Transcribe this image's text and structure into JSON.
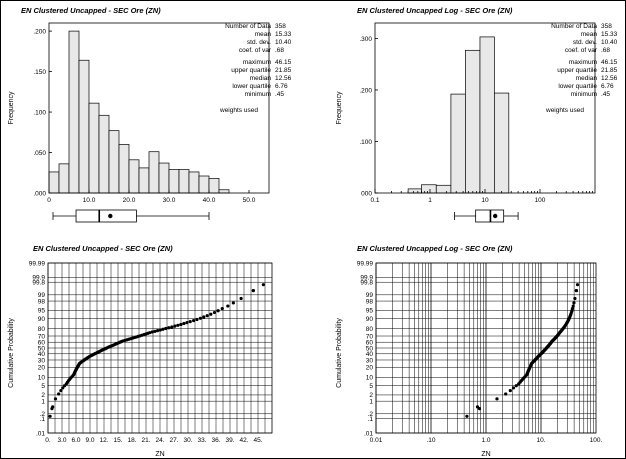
{
  "chart_data": [
    {
      "type": "histogram",
      "title": "EN Clustered Uncapped - SEC Ore (ZN)",
      "ylabel": "Frequency",
      "xlim": [
        0,
        55
      ],
      "ylim": [
        0,
        0.21
      ],
      "x_ticks": [
        "0",
        "10.0",
        "20.0",
        "30.0",
        "40.0",
        "50.0"
      ],
      "y_ticks": [
        ".000",
        ".050",
        ".100",
        ".150",
        ".200"
      ],
      "bin_width": 2.5,
      "bin_starts": [
        0,
        2.5,
        5,
        7.5,
        10,
        12.5,
        15,
        17.5,
        20,
        22.5,
        25,
        27.5,
        30,
        32.5,
        35,
        37.5,
        40,
        42.5
      ],
      "values": [
        0.026,
        0.036,
        0.2,
        0.164,
        0.111,
        0.096,
        0.077,
        0.06,
        0.041,
        0.031,
        0.051,
        0.037,
        0.029,
        0.029,
        0.026,
        0.021,
        0.018,
        0.004
      ],
      "stats": [
        {
          "label": "Number of Data",
          "value": "358"
        },
        {
          "label": "mean",
          "value": "15.33"
        },
        {
          "label": "std. dev.",
          "value": "10.40"
        },
        {
          "label": "coef. of var",
          "value": ".68"
        },
        {
          "label": "maximum",
          "value": "46.15"
        },
        {
          "label": "upper quartile",
          "value": "21.85"
        },
        {
          "label": "median",
          "value": "12.56"
        },
        {
          "label": "lower quartile",
          "value": "6.76"
        },
        {
          "label": "minimum",
          "value": ".45"
        }
      ],
      "weights_note": "weights used",
      "boxplot": {
        "min": 1,
        "q1": 6.76,
        "median": 12.56,
        "q3": 21.85,
        "max": 40,
        "mean": 15.33
      }
    },
    {
      "type": "histogram",
      "title": "EN Clustered Uncapped Log - SEC Ore (ZN)",
      "ylabel": "Frequency",
      "xscale": "log",
      "xlim": [
        0.1,
        1000
      ],
      "ylim": [
        0,
        0.33
      ],
      "x_ticks": [
        "0.1",
        "1",
        "10",
        "100"
      ],
      "y_ticks": [
        "000",
        ".100",
        ".200",
        ".300"
      ],
      "bin_edges": [
        0.4,
        0.7,
        1.3,
        2.4,
        4.4,
        8.1,
        14.8,
        27.1,
        49.6
      ],
      "values": [
        0.008,
        0.016,
        0.015,
        0.192,
        0.277,
        0.303,
        0.194,
        0
      ],
      "stats": [
        {
          "label": "Number of Data",
          "value": "358"
        },
        {
          "label": "mean",
          "value": "15.33"
        },
        {
          "label": "std. dev.",
          "value": "10.40"
        },
        {
          "label": "coef. of var",
          "value": ".68"
        },
        {
          "label": "maximum",
          "value": "46.15"
        },
        {
          "label": "upper quartile",
          "value": "21.85"
        },
        {
          "label": "median",
          "value": "12.56"
        },
        {
          "label": "lower quartile",
          "value": "6.76"
        },
        {
          "label": "minimum",
          "value": ".45"
        }
      ],
      "weights_note": "weights used",
      "boxplot": {
        "min": 2.8,
        "q1": 6.76,
        "median": 12.56,
        "q3": 21.85,
        "max": 40,
        "mean": 15.33
      }
    },
    {
      "type": "scatter",
      "subtype": "probability plot",
      "title": "EN Clustered Uncapped - SEC Ore (ZN)",
      "xlabel": "ZN",
      "ylabel": "Cumulative Probability",
      "xlim": [
        0,
        48
      ],
      "x_ticks": [
        "0.",
        "3.0",
        "6.0",
        "9.0",
        "12.",
        "15.",
        "18.",
        "21.",
        "24.",
        "27.",
        "30.",
        "33.",
        "36.",
        "39.",
        "42.",
        "45."
      ],
      "prob_ticks": [
        "99.99",
        "99.9",
        "99.8",
        "99",
        "98",
        "95",
        "90",
        "80",
        "70",
        "60",
        "50",
        "40",
        "30",
        "20",
        "10",
        "5",
        "2",
        "1",
        ".2",
        ".1",
        ".01"
      ],
      "curve_x": [
        0.45,
        1.0,
        2.5,
        4.0,
        5.5,
        6.5,
        6.76,
        9.0,
        12.56,
        16.0,
        21.85,
        25.0,
        30.0,
        34.0,
        37.0,
        40.0,
        42.0,
        44.0,
        46.15
      ],
      "curve_p": [
        0.14,
        0.5,
        2.5,
        6,
        12,
        22,
        25,
        36,
        50,
        62,
        75,
        80,
        87,
        92,
        95.5,
        97.8,
        98.8,
        99.4,
        99.72
      ]
    },
    {
      "type": "scatter",
      "subtype": "log probability plot",
      "title": "EN Clustered Uncapped Log - SEC Ore (ZN)",
      "xlabel": "ZN",
      "ylabel": "Cumulative Probability",
      "xscale": "log",
      "xlim": [
        0.01,
        100
      ],
      "x_ticks": [
        "0.01",
        ".10",
        "1.0",
        "10.",
        "100."
      ],
      "prob_ticks": [
        "99.99",
        "99.9",
        "99.8",
        "99",
        "98",
        "95",
        "90",
        "80",
        "70",
        "60",
        "50",
        "40",
        "30",
        "20",
        "10",
        "5",
        "2",
        "1",
        ".2",
        ".1",
        ".01"
      ],
      "curve_x": [
        0.45,
        0.7,
        1.0,
        1.5,
        2.5,
        4.0,
        5.5,
        6.5,
        6.76,
        9.0,
        12.56,
        16.0,
        21.85,
        25.0,
        30.0,
        34.0,
        37.0,
        40.0,
        42.0,
        44.0,
        46.15
      ],
      "curve_p": [
        0.14,
        0.35,
        0.6,
        1.2,
        2.5,
        6,
        12,
        22,
        25,
        36,
        50,
        62,
        75,
        80,
        87,
        92,
        95.5,
        97.8,
        98.8,
        99.4,
        99.72
      ]
    }
  ]
}
